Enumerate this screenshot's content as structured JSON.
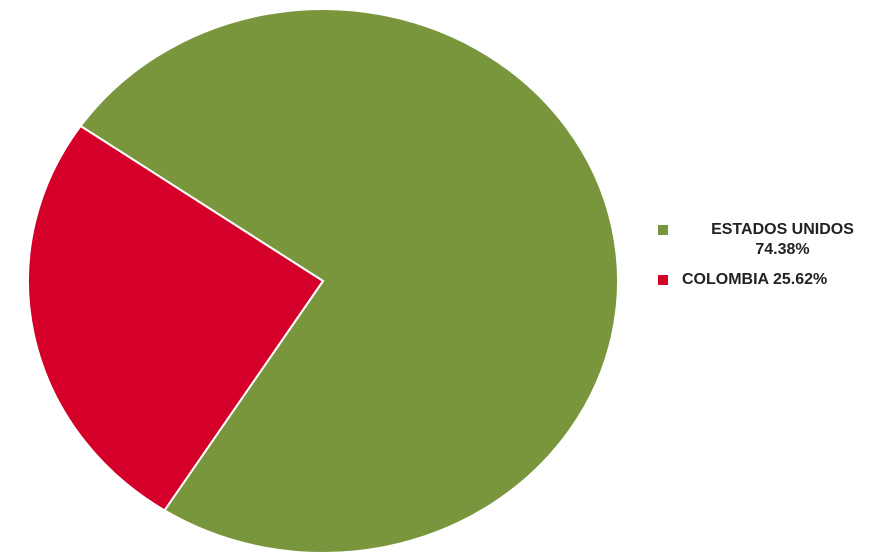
{
  "chart_data": {
    "type": "pie",
    "categories": [
      "ESTADOS UNIDOS",
      "COLOMBIA"
    ],
    "values": [
      74.38,
      25.62
    ],
    "colors": [
      "#7a963d",
      "#d4002a"
    ],
    "legend_labels": [
      "ESTADOS UNIDOS 74.38%",
      "COLOMBIA 25.62%"
    ],
    "legend_position": "right",
    "title": ""
  }
}
